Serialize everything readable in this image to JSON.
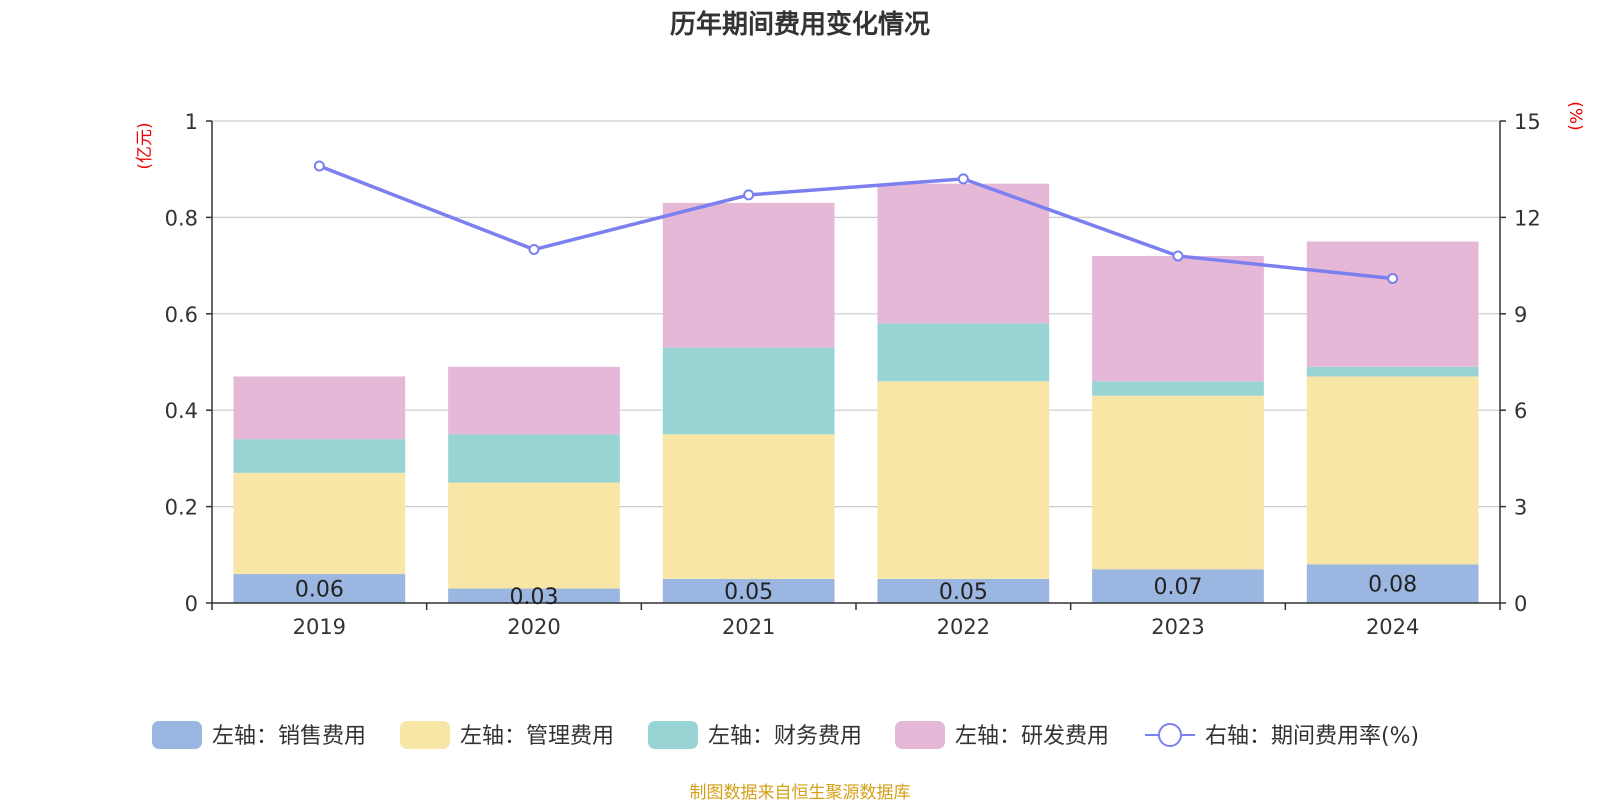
{
  "title": "历年期间费用变化情况",
  "credit": "制图数据来自恒生聚源数据库",
  "chart_data": {
    "type": "bar",
    "stacked": true,
    "categories": [
      "2019",
      "2020",
      "2021",
      "2022",
      "2023",
      "2024"
    ],
    "left_axis": {
      "unit": "(亿元)",
      "ylim": [
        0,
        1
      ],
      "ticks": [
        "0",
        "0.2",
        "0.4",
        "0.6",
        "0.8",
        "1"
      ]
    },
    "right_axis": {
      "unit": "(%)",
      "ylim": [
        0,
        15
      ],
      "ticks": [
        "0",
        "3",
        "6",
        "9",
        "12",
        "15"
      ]
    },
    "grid": true,
    "legend_position": "bottom",
    "series": [
      {
        "name": "左轴：销售费用",
        "axis": "left",
        "type": "bar",
        "color": "#9bb6e0",
        "values": [
          0.06,
          0.03,
          0.05,
          0.05,
          0.07,
          0.08
        ],
        "labels": [
          "0.06",
          "0.03",
          "0.05",
          "0.05",
          "0.07",
          "0.08"
        ]
      },
      {
        "name": "左轴：管理费用",
        "axis": "left",
        "type": "bar",
        "color": "#f7e6a6",
        "values": [
          0.21,
          0.22,
          0.3,
          0.41,
          0.36,
          0.39
        ]
      },
      {
        "name": "左轴：财务费用",
        "axis": "left",
        "type": "bar",
        "color": "#99d4d4",
        "values": [
          0.07,
          0.1,
          0.18,
          0.12,
          0.03,
          0.02
        ]
      },
      {
        "name": "左轴：研发费用",
        "axis": "left",
        "type": "bar",
        "color": "#e6b8d8",
        "values": [
          0.13,
          0.14,
          0.3,
          0.29,
          0.26,
          0.26
        ]
      },
      {
        "name": "右轴：期间费用率(%)",
        "axis": "right",
        "type": "line",
        "color": "#7b7fef",
        "values": [
          13.6,
          11.0,
          12.7,
          13.2,
          10.8,
          10.1
        ]
      }
    ]
  }
}
